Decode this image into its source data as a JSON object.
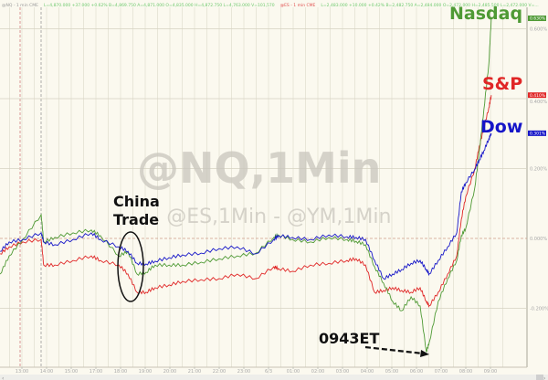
{
  "header": {
    "nq_symbol": "@NQ - 1 min CME",
    "nq_quote": "L=4,870.000 +37.000 +0.62%  B=4,869.750  A=4,871.000  O=4,835.000  H=4,872.750  L=4,763.000  V=101,570",
    "es_symbol": "@ES - 1 min CME",
    "es_quote": "L=2,483.000 +10.000 +0.42%  B=2,482.750  A=2,484.000  O=2,472.000  H=2,485.500  L=2,472.000  V=..."
  },
  "colors": {
    "background": "#fbf9ef",
    "nasdaq": "#4f9a35",
    "sp": "#e02626",
    "dow": "#1515c8",
    "grid": "#ddd9c8"
  },
  "chart_data": {
    "type": "line",
    "watermark_title": "@NQ,1Min",
    "watermark_subtitle": "@ES,1Min - @YM,1Min",
    "x_tick_labels": [
      "13:00",
      "14:00",
      "15:00",
      "17:00",
      "18:00",
      "19:00",
      "20:00",
      "21:00",
      "22:00",
      "23:00",
      "6/3",
      "01:00",
      "02:00",
      "03:00",
      "04:00",
      "05:00",
      "06:00",
      "07:00",
      "08:00",
      "09:00"
    ],
    "y_tick_labels": [
      "0.600%",
      "0.400%",
      "0.200%",
      "0.000%",
      "-0.200%"
    ],
    "y_ticks": [
      0.6,
      0.4,
      0.2,
      0.0,
      -0.2
    ],
    "ylim": [
      -0.36,
      0.66
    ],
    "y_unit": "%",
    "grid": true,
    "x": [
      "12:07",
      "12:29",
      "13:02",
      "13:47",
      "13:53",
      "14:20",
      "15:09",
      "16:38",
      "17:11",
      "17:56",
      "18:18",
      "18:40",
      "19:02",
      "19:24",
      "19:58",
      "20:31",
      "21:16",
      "22:00",
      "22:44",
      "23:29",
      "00:13",
      "00:24",
      "00:58",
      "01:42",
      "02:27",
      "03:11",
      "03:33",
      "03:56",
      "04:18",
      "04:40",
      "05:02",
      "05:24",
      "05:47",
      "06:09",
      "06:24",
      "06:31",
      "06:53",
      "07:16",
      "07:38",
      "07:49",
      "08:00",
      "08:22",
      "08:33",
      "08:44",
      "08:56",
      "09:02"
    ],
    "series": [
      {
        "name": "Nasdaq",
        "color": "#4f9a35",
        "end_badge": "0.630%",
        "values": [
          -0.102,
          -0.05,
          -0.003,
          0.068,
          -0.01,
          0.003,
          0.016,
          0.024,
          0.008,
          -0.05,
          -0.037,
          -0.102,
          -0.097,
          -0.076,
          -0.076,
          -0.076,
          -0.068,
          -0.058,
          -0.05,
          -0.042,
          0.003,
          0.01,
          -0.003,
          -0.01,
          0.003,
          -0.003,
          -0.008,
          -0.018,
          -0.081,
          -0.128,
          -0.18,
          -0.207,
          -0.167,
          -0.193,
          -0.324,
          -0.298,
          -0.18,
          -0.115,
          -0.063,
          0.008,
          0.029,
          0.146,
          0.251,
          0.369,
          0.499,
          0.63
        ]
      },
      {
        "name": "S&P",
        "color": "#e02626",
        "end_badge": "0.410%",
        "values": [
          -0.044,
          -0.024,
          -0.01,
          -0.003,
          -0.076,
          -0.076,
          -0.063,
          -0.05,
          -0.063,
          -0.076,
          -0.102,
          -0.154,
          -0.154,
          -0.141,
          -0.133,
          -0.123,
          -0.118,
          -0.115,
          -0.102,
          -0.115,
          -0.081,
          -0.086,
          -0.094,
          -0.076,
          -0.071,
          -0.063,
          -0.058,
          -0.076,
          -0.154,
          -0.149,
          -0.141,
          -0.149,
          -0.154,
          -0.141,
          -0.18,
          -0.193,
          -0.154,
          -0.102,
          -0.05,
          0.055,
          0.12,
          0.199,
          0.264,
          0.316,
          0.374,
          0.41
        ]
      },
      {
        "name": "Dow",
        "color": "#1515c8",
        "end_badge": "0.301%",
        "values": [
          -0.037,
          -0.01,
          -0.003,
          0.016,
          -0.01,
          -0.018,
          -0.003,
          0.016,
          -0.003,
          -0.024,
          -0.037,
          -0.071,
          -0.073,
          -0.065,
          -0.055,
          -0.047,
          -0.042,
          -0.029,
          -0.024,
          -0.044,
          -0.003,
          0.008,
          0.003,
          -0.003,
          0.01,
          0.005,
          0.003,
          -0.003,
          -0.063,
          -0.115,
          -0.102,
          -0.089,
          -0.071,
          -0.063,
          -0.089,
          -0.102,
          -0.063,
          -0.024,
          0.016,
          0.133,
          0.159,
          0.199,
          0.225,
          0.251,
          0.285,
          0.301
        ]
      }
    ],
    "annotations": [
      {
        "text_line1": "China",
        "text_line2": "Trade",
        "shape": "ellipse",
        "at": "18:30"
      },
      {
        "text": "0943ET",
        "shape": "dashed-arrow",
        "points_to": "06:24"
      }
    ]
  }
}
